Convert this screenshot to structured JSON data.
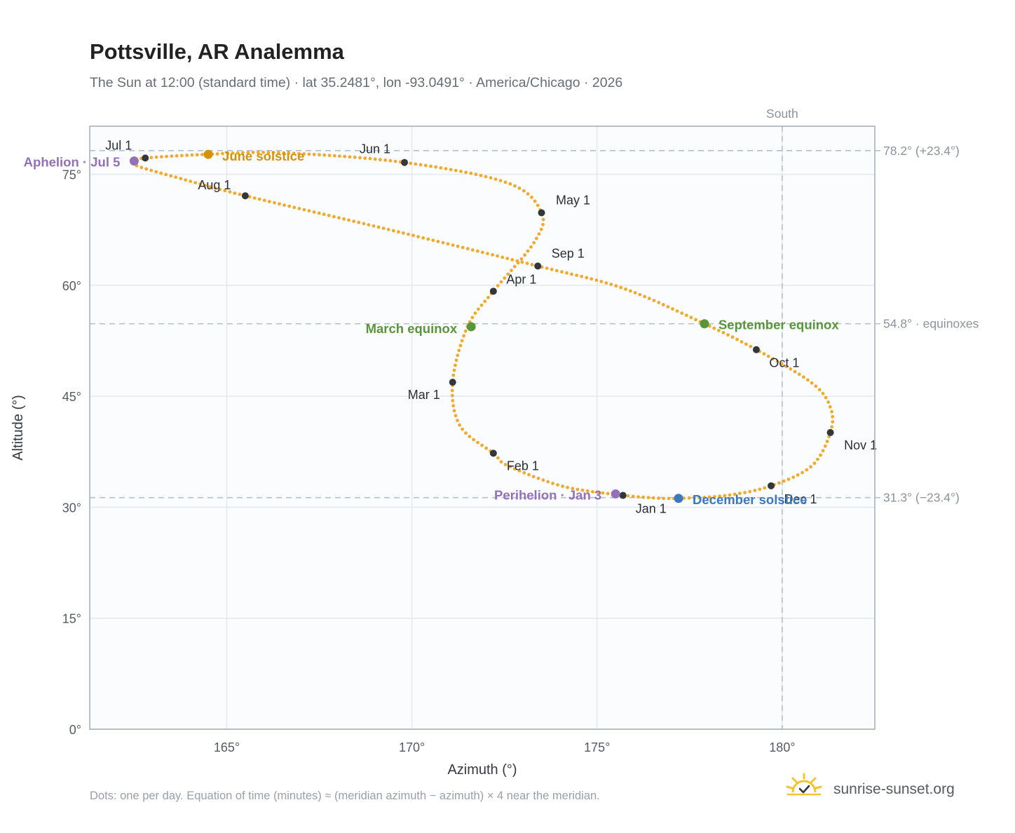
{
  "title": "Pottsville, AR Analemma",
  "subtitle": "The Sun at 12:00 (standard time) · lat 35.2481°, lon -93.0491° · America/Chicago · 2026",
  "footnote": "Dots: one per day. Equation of time (minutes) ≈ (meridian azimuth − azimuth) × 4 near the meridian.",
  "brand": {
    "name": "sunrise-sunset.org",
    "logo_icon": "sun-check-icon"
  },
  "colors": {
    "curve": "#f2aa2c",
    "month_dot": "#33373b",
    "solstice_june": "#d4920c",
    "solstice_december": "#3b78c0",
    "equinox": "#5a9638",
    "apsis": "#9370b8",
    "ref_line": "#b4c0cc",
    "grid": "#e4e9ee",
    "plot_bg": "#fafcfe",
    "frame": "#a3acb6"
  },
  "chart_data": {
    "type": "scatter",
    "xlabel": "Azimuth (°)",
    "ylabel": "Altitude (°)",
    "xlim": [
      161.3,
      182.5
    ],
    "ylim": [
      0,
      81.5
    ],
    "x_ticks": [
      165,
      170,
      175,
      180
    ],
    "x_tick_labels": [
      "165°",
      "170°",
      "175°",
      "180°"
    ],
    "y_ticks": [
      0,
      15,
      30,
      45,
      60,
      75
    ],
    "y_tick_labels": [
      "0°",
      "15°",
      "30°",
      "45°",
      "60°",
      "75°"
    ],
    "grid": true,
    "meridian": {
      "azimuth": 180,
      "label": "South"
    },
    "reference_lines": [
      {
        "altitude": 78.2,
        "label": "78.2° (+23.4°)"
      },
      {
        "altitude": 54.8,
        "label": "54.8° · equinoxes"
      },
      {
        "altitude": 31.3,
        "label": "31.3° (−23.4°)"
      }
    ],
    "months": [
      {
        "label": "Jan 1",
        "az": 175.7,
        "alt": 31.6
      },
      {
        "label": "Feb 1",
        "az": 172.2,
        "alt": 37.3
      },
      {
        "label": "Mar 1",
        "az": 171.1,
        "alt": 46.9
      },
      {
        "label": "Apr 1",
        "az": 172.2,
        "alt": 59.2
      },
      {
        "label": "May 1",
        "az": 173.5,
        "alt": 69.8
      },
      {
        "label": "Jun 1",
        "az": 169.8,
        "alt": 76.6
      },
      {
        "label": "Jul 1",
        "az": 162.8,
        "alt": 77.2
      },
      {
        "label": "Aug 1",
        "az": 165.5,
        "alt": 72.1
      },
      {
        "label": "Sep 1",
        "az": 173.4,
        "alt": 62.6
      },
      {
        "label": "Oct 1",
        "az": 179.3,
        "alt": 51.3
      },
      {
        "label": "Nov 1",
        "az": 181.3,
        "alt": 40.1
      },
      {
        "label": "Dec 1",
        "az": 179.7,
        "alt": 32.9
      }
    ],
    "events": [
      {
        "label": "June solstice",
        "az": 164.5,
        "alt": 77.7,
        "color_key": "solstice_june"
      },
      {
        "label": "December solstice",
        "az": 177.2,
        "alt": 31.2,
        "color_key": "solstice_december"
      },
      {
        "label": "March equinox",
        "az": 171.6,
        "alt": 54.4,
        "color_key": "equinox"
      },
      {
        "label": "September equinox",
        "az": 177.9,
        "alt": 54.8,
        "color_key": "equinox"
      },
      {
        "label": "Aphelion · Jul 5",
        "az": 162.5,
        "alt": 76.8,
        "color_key": "apsis"
      },
      {
        "label": "Perihelion · Jan 3",
        "az": 175.5,
        "alt": 31.8,
        "color_key": "apsis"
      }
    ],
    "daily_path": [
      [
        175.7,
        31.6
      ],
      [
        174.1,
        32.8
      ],
      [
        172.6,
        35.6
      ],
      [
        172.2,
        37.3
      ],
      [
        171.3,
        41.0
      ],
      [
        171.1,
        46.9
      ],
      [
        171.5,
        54.4
      ],
      [
        172.2,
        59.2
      ],
      [
        173.3,
        65.8
      ],
      [
        173.5,
        69.8
      ],
      [
        172.6,
        73.8
      ],
      [
        169.8,
        76.6
      ],
      [
        166.5,
        77.9
      ],
      [
        164.5,
        77.7
      ],
      [
        162.8,
        77.2
      ],
      [
        162.5,
        76.8
      ],
      [
        162.6,
        76.1
      ],
      [
        163.7,
        74.5
      ],
      [
        165.5,
        72.1
      ],
      [
        169.4,
        67.5
      ],
      [
        173.4,
        62.6
      ],
      [
        175.7,
        59.6
      ],
      [
        177.9,
        54.8
      ],
      [
        179.3,
        51.3
      ],
      [
        180.8,
        46.8
      ],
      [
        181.3,
        43.5
      ],
      [
        181.3,
        40.1
      ],
      [
        180.8,
        35.6
      ],
      [
        179.7,
        32.9
      ],
      [
        178.5,
        31.6
      ],
      [
        177.2,
        31.2
      ],
      [
        176.4,
        31.3
      ],
      [
        175.7,
        31.6
      ]
    ]
  }
}
